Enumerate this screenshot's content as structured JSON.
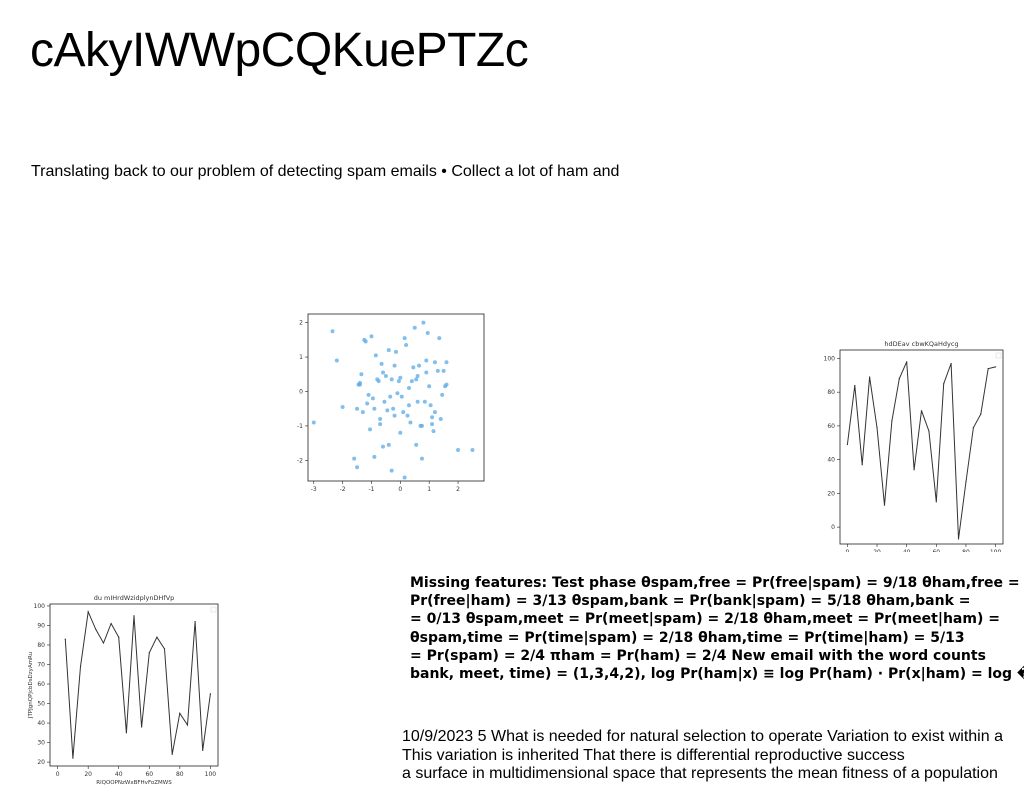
{
  "title": "cAkyIWWpCQKuePTZc",
  "intro": "Translating back to our problem of detecting spam emails • Collect a lot of ham and",
  "bold_lines": [
    "Missing features: Test phase θspam,free = Pr(free|spam) = 9/18 θham,free =",
    "Pr(free|ham) = 3/13 θspam,bank = Pr(bank|spam) = 5/18 θham,bank =",
    "= 0/13 θspam,meet = Pr(meet|spam) = 2/18 θham,meet = Pr(meet|ham) =",
    "θspam,time = Pr(time|spam) = 2/18 θham,time = Pr(time|ham) = 5/13",
    "= Pr(spam) = 2/4 πham = Pr(ham) = 2/4 New email with the word counts",
    "bank, meet, time) = (1,3,4,2), log Pr(ham|x) ≡ log Pr(ham) · Pr(x|ham) = log �"
  ],
  "bottom_lines": [
    "10/9/2023 5 What is needed for natural selection to operate Variation to exist within a",
    "This variation is inherited That there is differential reproductive success",
    "a surface in multidimensional space that represents the mean fitness of a population"
  ],
  "chart_data": [
    {
      "type": "scatter",
      "color": "#5aa9e6",
      "xlim": [
        -3.2,
        2.9
      ],
      "ylim": [
        -2.6,
        2.25
      ],
      "x_ticks": [
        "-3",
        "-2",
        "-1",
        "0",
        "1",
        "2"
      ],
      "y_ticks": [
        "2",
        "1",
        "0",
        "-1",
        "-2"
      ],
      "x": [
        -3.0,
        -2.35,
        -2.2,
        -2.0,
        -1.6,
        -1.5,
        -1.45,
        -1.4,
        -1.35,
        -1.3,
        -1.25,
        -1.2,
        -1.15,
        -1.1,
        -1.0,
        -0.95,
        -0.9,
        -0.85,
        -0.8,
        -0.75,
        -0.7,
        -0.65,
        -0.6,
        -0.55,
        -0.5,
        -0.45,
        -0.4,
        -0.35,
        -0.3,
        -0.25,
        -0.2,
        -0.15,
        -0.1,
        -0.05,
        0.0,
        0.05,
        0.1,
        0.15,
        0.2,
        0.25,
        0.3,
        0.35,
        0.4,
        0.45,
        0.5,
        0.55,
        0.6,
        0.65,
        0.7,
        0.75,
        0.8,
        0.85,
        0.9,
        0.95,
        1.0,
        1.05,
        1.1,
        1.15,
        1.2,
        1.3,
        1.35,
        1.4,
        1.45,
        1.5,
        1.55,
        1.6,
        -1.5,
        -1.05,
        -0.6,
        -0.9,
        -0.3,
        0.15,
        0.55,
        0.75,
        1.1,
        2.0,
        2.5,
        -0.7,
        0.3,
        0.9,
        -0.4,
        -1.4,
        1.2,
        0.6,
        -0.2,
        0.0,
        1.6
      ],
      "y": [
        -0.9,
        1.75,
        0.9,
        -0.45,
        -1.95,
        -2.2,
        0.2,
        0.25,
        0.5,
        -0.6,
        1.5,
        1.45,
        -0.35,
        -0.1,
        1.6,
        -0.2,
        -0.5,
        1.05,
        0.35,
        0.3,
        -0.8,
        0.8,
        0.55,
        -0.3,
        0.45,
        -0.55,
        1.2,
        -0.15,
        0.35,
        -0.5,
        -0.7,
        1.15,
        -0.05,
        0.3,
        0.4,
        -0.15,
        -0.6,
        1.55,
        1.35,
        -0.7,
        0.1,
        -0.9,
        0.3,
        0.7,
        1.85,
        0.35,
        -0.3,
        0.75,
        -1.0,
        -1.95,
        2.0,
        -0.3,
        0.55,
        1.7,
        0.15,
        -0.4,
        -0.95,
        -1.15,
        0.85,
        0.6,
        1.55,
        -0.8,
        -0.1,
        0.6,
        0.15,
        0.85,
        -0.5,
        -1.1,
        -1.6,
        -1.9,
        -2.3,
        -2.5,
        -1.55,
        -1.0,
        -0.75,
        -1.7,
        -1.7,
        -0.95,
        -0.4,
        0.9,
        -1.55,
        0.2,
        -0.6,
        0.45,
        0.75,
        -1.2,
        0.2
      ],
      "grid": false
    },
    {
      "type": "line",
      "title": "hdDEav cbwKQaHdycg",
      "color": "#333333",
      "xlim": [
        -5,
        105
      ],
      "ylim": [
        -10,
        105
      ],
      "x_ticks": [
        "0",
        "20",
        "40",
        "60",
        "80",
        "100"
      ],
      "y_ticks": [
        "0",
        "20",
        "40",
        "60",
        "80",
        "100"
      ],
      "x": [
        0,
        5,
        10,
        15,
        20,
        25,
        30,
        35,
        40,
        45,
        50,
        55,
        60,
        65,
        70,
        75,
        80,
        85,
        90,
        95,
        100
      ],
      "y": [
        49,
        84,
        37,
        89,
        59,
        13,
        63,
        88,
        98,
        34,
        69,
        57,
        15,
        85,
        97,
        -7,
        27,
        59,
        67,
        94,
        95
      ],
      "legend": "top-right",
      "grid": false
    },
    {
      "type": "line",
      "title": "du mIHrdWzidplynDHfVp",
      "xlabel": "RlQOOPNzWxBFHvFoZMWS",
      "ylabel": "JTPJgnQPjcbDsDzyAmRu",
      "color": "#333333",
      "xlim": [
        -5,
        105
      ],
      "ylim": [
        18,
        101
      ],
      "x_ticks": [
        "0",
        "20",
        "40",
        "60",
        "80",
        "100"
      ],
      "y_ticks": [
        "20",
        "30",
        "40",
        "50",
        "60",
        "70",
        "80",
        "90",
        "100"
      ],
      "x": [
        5,
        10,
        15,
        20,
        25,
        30,
        35,
        40,
        45,
        50,
        55,
        60,
        65,
        70,
        75,
        80,
        85,
        90,
        95,
        100
      ],
      "y": [
        83,
        22,
        69,
        97,
        88,
        81,
        91,
        84,
        35,
        95,
        38,
        76,
        84,
        78,
        24,
        45,
        39,
        92,
        26,
        55
      ],
      "legend": "top-right",
      "grid": false
    }
  ]
}
